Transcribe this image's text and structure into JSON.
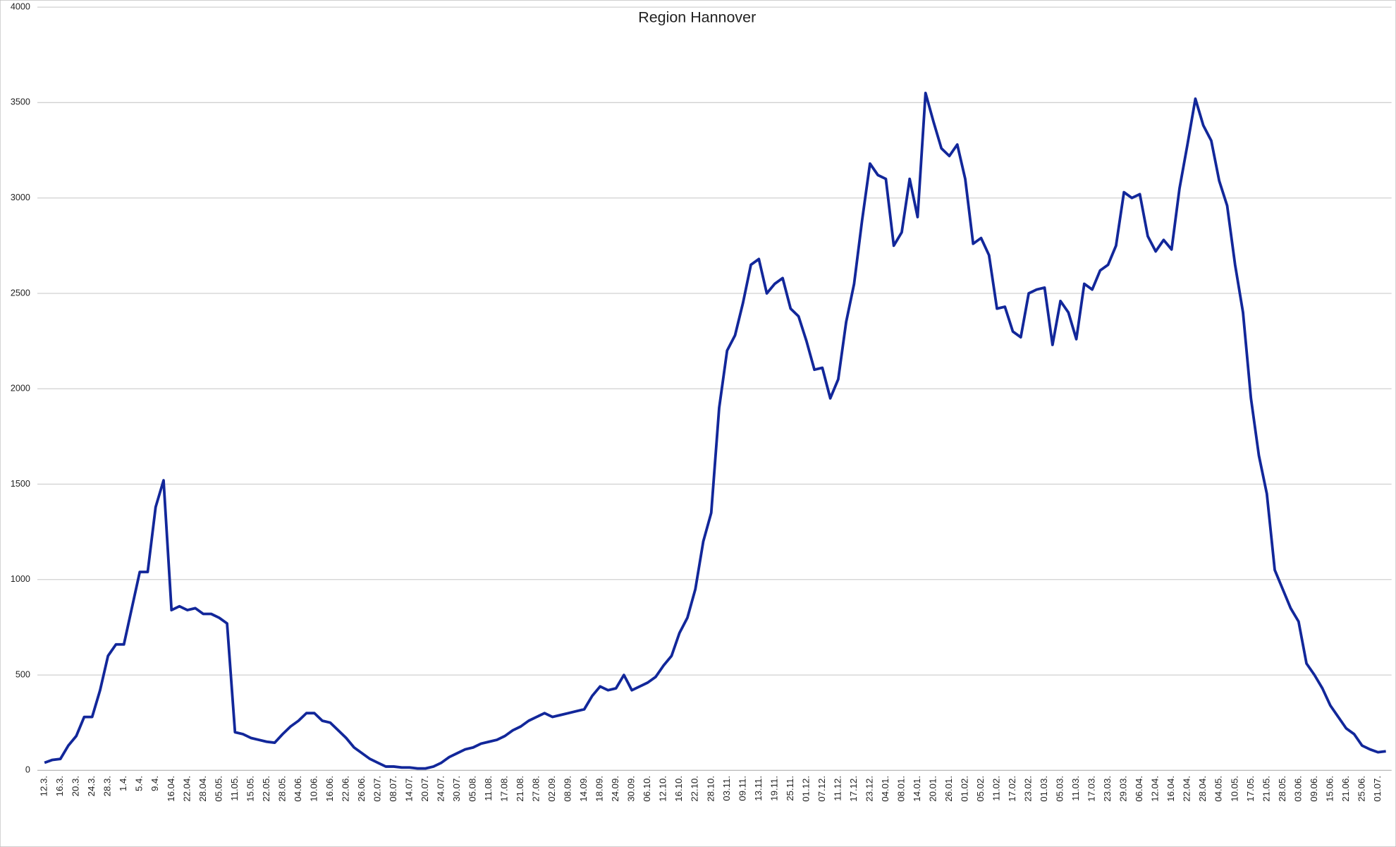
{
  "chart_data": {
    "type": "line",
    "title": "Region Hannover",
    "categories": [
      "12.3.",
      null,
      "16.3.",
      null,
      "20.3.",
      null,
      "24.3.",
      null,
      "28.3.",
      null,
      "1.4.",
      null,
      "5.4.",
      null,
      "9.4.",
      null,
      "16.04.",
      null,
      "22.04.",
      null,
      "28.04.",
      null,
      "05.05.",
      null,
      "11.05.",
      null,
      "15.05.",
      null,
      "22.05.",
      null,
      "28.05.",
      null,
      "04.06.",
      null,
      "10.06.",
      null,
      "16.06.",
      null,
      "22.06.",
      null,
      "26.06.",
      null,
      "02.07.",
      null,
      "08.07.",
      null,
      "14.07.",
      null,
      "20.07.",
      null,
      "24.07.",
      null,
      "30.07.",
      null,
      "05.08.",
      null,
      "11.08.",
      null,
      "17.08.",
      null,
      "21.08.",
      null,
      "27.08.",
      null,
      "02.09.",
      null,
      "08.09.",
      null,
      "14.09.",
      null,
      "18.09.",
      null,
      "24.09.",
      null,
      "30.09.",
      null,
      "06.10.",
      null,
      "12.10.",
      null,
      "16.10.",
      null,
      "22.10.",
      null,
      "28.10.",
      null,
      "03.11.",
      null,
      "09.11.",
      null,
      "13.11.",
      null,
      "19.11.",
      null,
      "25.11.",
      null,
      "01.12.",
      null,
      "07.12.",
      null,
      "11.12.",
      null,
      "17.12.",
      null,
      "23.12.",
      null,
      "04.01.",
      null,
      "08.01.",
      null,
      "14.01.",
      null,
      "20.01.",
      null,
      "26.01.",
      null,
      "01.02.",
      null,
      "05.02.",
      null,
      "11.02.",
      null,
      "17.02.",
      null,
      "23.02.",
      null,
      "01.03.",
      null,
      "05.03.",
      null,
      "11.03.",
      null,
      "17.03.",
      null,
      "23.03.",
      null,
      "29.03.",
      null,
      "06.04.",
      null,
      "12.04.",
      null,
      "16.04.",
      null,
      "22.04.",
      null,
      "28.04.",
      null,
      "04.05.",
      null,
      "10.05.",
      null,
      "17.05.",
      null,
      "21.05.",
      null,
      "28.05.",
      null,
      "03.06.",
      null,
      "09.06.",
      null,
      "15.06.",
      null,
      "21.06.",
      null,
      "25.06.",
      null,
      "01.07.",
      null
    ],
    "series": [
      {
        "color": "#12279a",
        "values": [
          40,
          55,
          60,
          130,
          180,
          280,
          280,
          420,
          600,
          660,
          660,
          850,
          1040,
          1040,
          1380,
          1520,
          840,
          860,
          840,
          850,
          820,
          820,
          800,
          770,
          200,
          190,
          170,
          160,
          150,
          145,
          190,
          230,
          260,
          300,
          300,
          260,
          250,
          210,
          170,
          120,
          90,
          60,
          40,
          20,
          20,
          15,
          15,
          10,
          10,
          20,
          40,
          70,
          90,
          110,
          120,
          140,
          150,
          160,
          180,
          210,
          230,
          260,
          280,
          300,
          280,
          290,
          300,
          310,
          320,
          390,
          440,
          420,
          430,
          500,
          420,
          440,
          460,
          490,
          550,
          600,
          720,
          800,
          950,
          1200,
          1350,
          1900,
          2200,
          2280,
          2450,
          2650,
          2680,
          2500,
          2550,
          2580,
          2420,
          2380,
          2250,
          2100,
          2110,
          1950,
          2050,
          2350,
          2550,
          2880,
          3180,
          3120,
          3100,
          2750,
          2820,
          3100,
          2900,
          3550,
          3400,
          3260,
          3220,
          3280,
          3100,
          2760,
          2790,
          2700,
          2420,
          2430,
          2300,
          2270,
          2500,
          2520,
          2530,
          2230,
          2460,
          2400,
          2260,
          2550,
          2520,
          2620,
          2650,
          2750,
          3030,
          3000,
          3020,
          2800,
          2720,
          2780,
          2730,
          3050,
          3280,
          3520,
          3380,
          3300,
          3090,
          2960,
          2650,
          2400,
          1950,
          1650,
          1450,
          1050,
          950,
          850,
          780,
          560,
          500,
          430,
          340,
          280,
          220,
          190,
          130,
          110,
          95,
          100
        ]
      }
    ],
    "ylim": [
      0,
      4000
    ],
    "yticks": [
      0,
      500,
      1000,
      1500,
      2000,
      2500,
      3000,
      3500,
      4000
    ],
    "grid": true
  }
}
